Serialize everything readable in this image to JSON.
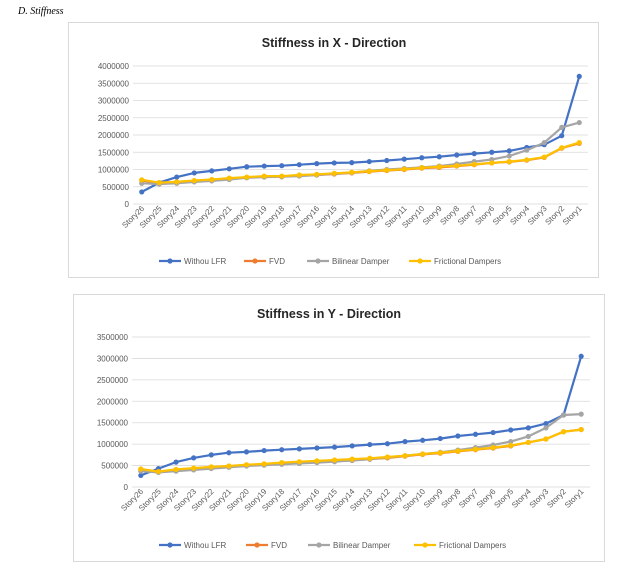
{
  "heading": "D.   Stiffness",
  "chart_data": [
    {
      "type": "line",
      "title": "Stiffness in X - Direction",
      "categories": [
        "Story26",
        "Story25",
        "Story24",
        "Story23",
        "Story22",
        "Story21",
        "Story20",
        "Story19",
        "Story18",
        "Story17",
        "Story16",
        "Story15",
        "Story14",
        "Story13",
        "Story12",
        "Story11",
        "Story10",
        "Story9",
        "Story8",
        "Story7",
        "Story6",
        "Story5",
        "Story4",
        "Story3",
        "Story2",
        "Story1"
      ],
      "ylim": [
        0,
        4000000
      ],
      "yticks": [
        "0",
        "500000",
        "1000000",
        "1500000",
        "2000000",
        "2500000",
        "3000000",
        "3500000",
        "4000000"
      ],
      "legend_position": "bottom",
      "series": [
        {
          "name": "Withou LFR",
          "color": "#4472C4",
          "values": [
            350000,
            620000,
            780000,
            900000,
            960000,
            1020000,
            1080000,
            1100000,
            1110000,
            1140000,
            1170000,
            1190000,
            1200000,
            1230000,
            1260000,
            1300000,
            1340000,
            1370000,
            1420000,
            1460000,
            1500000,
            1540000,
            1640000,
            1720000,
            1980000,
            3700000
          ]
        },
        {
          "name": "FVD",
          "color": "#ED7D31",
          "values": [
            680000,
            610000,
            640000,
            670000,
            700000,
            730000,
            770000,
            790000,
            790000,
            820000,
            840000,
            870000,
            900000,
            940000,
            970000,
            1000000,
            1040000,
            1060000,
            1100000,
            1140000,
            1190000,
            1220000,
            1270000,
            1350000,
            1620000,
            1760000
          ]
        },
        {
          "name": "Bilinear Damper",
          "color": "#A5A5A5",
          "values": [
            600000,
            580000,
            600000,
            640000,
            670000,
            710000,
            760000,
            780000,
            790000,
            810000,
            840000,
            880000,
            910000,
            960000,
            1000000,
            1030000,
            1060000,
            1100000,
            1160000,
            1230000,
            1290000,
            1390000,
            1560000,
            1780000,
            2220000,
            2360000
          ]
        },
        {
          "name": "Frictional Dampers",
          "color": "#FFC000",
          "values": [
            700000,
            620000,
            640000,
            680000,
            710000,
            750000,
            780000,
            810000,
            810000,
            840000,
            860000,
            890000,
            920000,
            950000,
            980000,
            1010000,
            1050000,
            1080000,
            1110000,
            1150000,
            1190000,
            1230000,
            1280000,
            1360000,
            1630000,
            1780000
          ]
        }
      ]
    },
    {
      "type": "line",
      "title": "Stiffness in Y - Direction",
      "categories": [
        "Story26",
        "Story25",
        "Story24",
        "Story23",
        "Story22",
        "Story21",
        "Story20",
        "Story19",
        "Story18",
        "Story17",
        "Story16",
        "Story15",
        "Story14",
        "Story13",
        "Story12",
        "Story11",
        "Story10",
        "Story9",
        "Story8",
        "Story7",
        "Story6",
        "Story5",
        "Story4",
        "Story3",
        "Story2",
        "Story1"
      ],
      "ylim": [
        0,
        3500000
      ],
      "yticks": [
        "0",
        "500000",
        "1000000",
        "1500000",
        "2000000",
        "2500000",
        "3000000",
        "3500000"
      ],
      "legend_position": "bottom",
      "series": [
        {
          "name": "Withou LFR",
          "color": "#4472C4",
          "values": [
            270000,
            430000,
            580000,
            680000,
            750000,
            800000,
            820000,
            850000,
            870000,
            890000,
            910000,
            930000,
            960000,
            990000,
            1010000,
            1060000,
            1090000,
            1130000,
            1190000,
            1230000,
            1270000,
            1330000,
            1380000,
            1480000,
            1680000,
            3050000
          ]
        },
        {
          "name": "FVD",
          "color": "#ED7D31",
          "values": [
            400000,
            360000,
            390000,
            420000,
            450000,
            480000,
            500000,
            530000,
            550000,
            560000,
            580000,
            600000,
            620000,
            650000,
            680000,
            720000,
            760000,
            790000,
            830000,
            870000,
            910000,
            960000,
            1040000,
            1120000,
            1290000,
            1340000
          ]
        },
        {
          "name": "Bilinear Damper",
          "color": "#A5A5A5",
          "values": [
            370000,
            340000,
            370000,
            400000,
            430000,
            460000,
            490000,
            510000,
            530000,
            550000,
            570000,
            590000,
            620000,
            650000,
            690000,
            730000,
            770000,
            810000,
            860000,
            920000,
            980000,
            1060000,
            1180000,
            1380000,
            1680000,
            1700000
          ]
        },
        {
          "name": "Frictional Dampers",
          "color": "#FFC000",
          "values": [
            420000,
            360000,
            410000,
            440000,
            470000,
            490000,
            520000,
            540000,
            570000,
            590000,
            610000,
            630000,
            650000,
            670000,
            700000,
            730000,
            770000,
            800000,
            840000,
            880000,
            920000,
            970000,
            1040000,
            1120000,
            1290000,
            1340000
          ]
        }
      ]
    }
  ]
}
